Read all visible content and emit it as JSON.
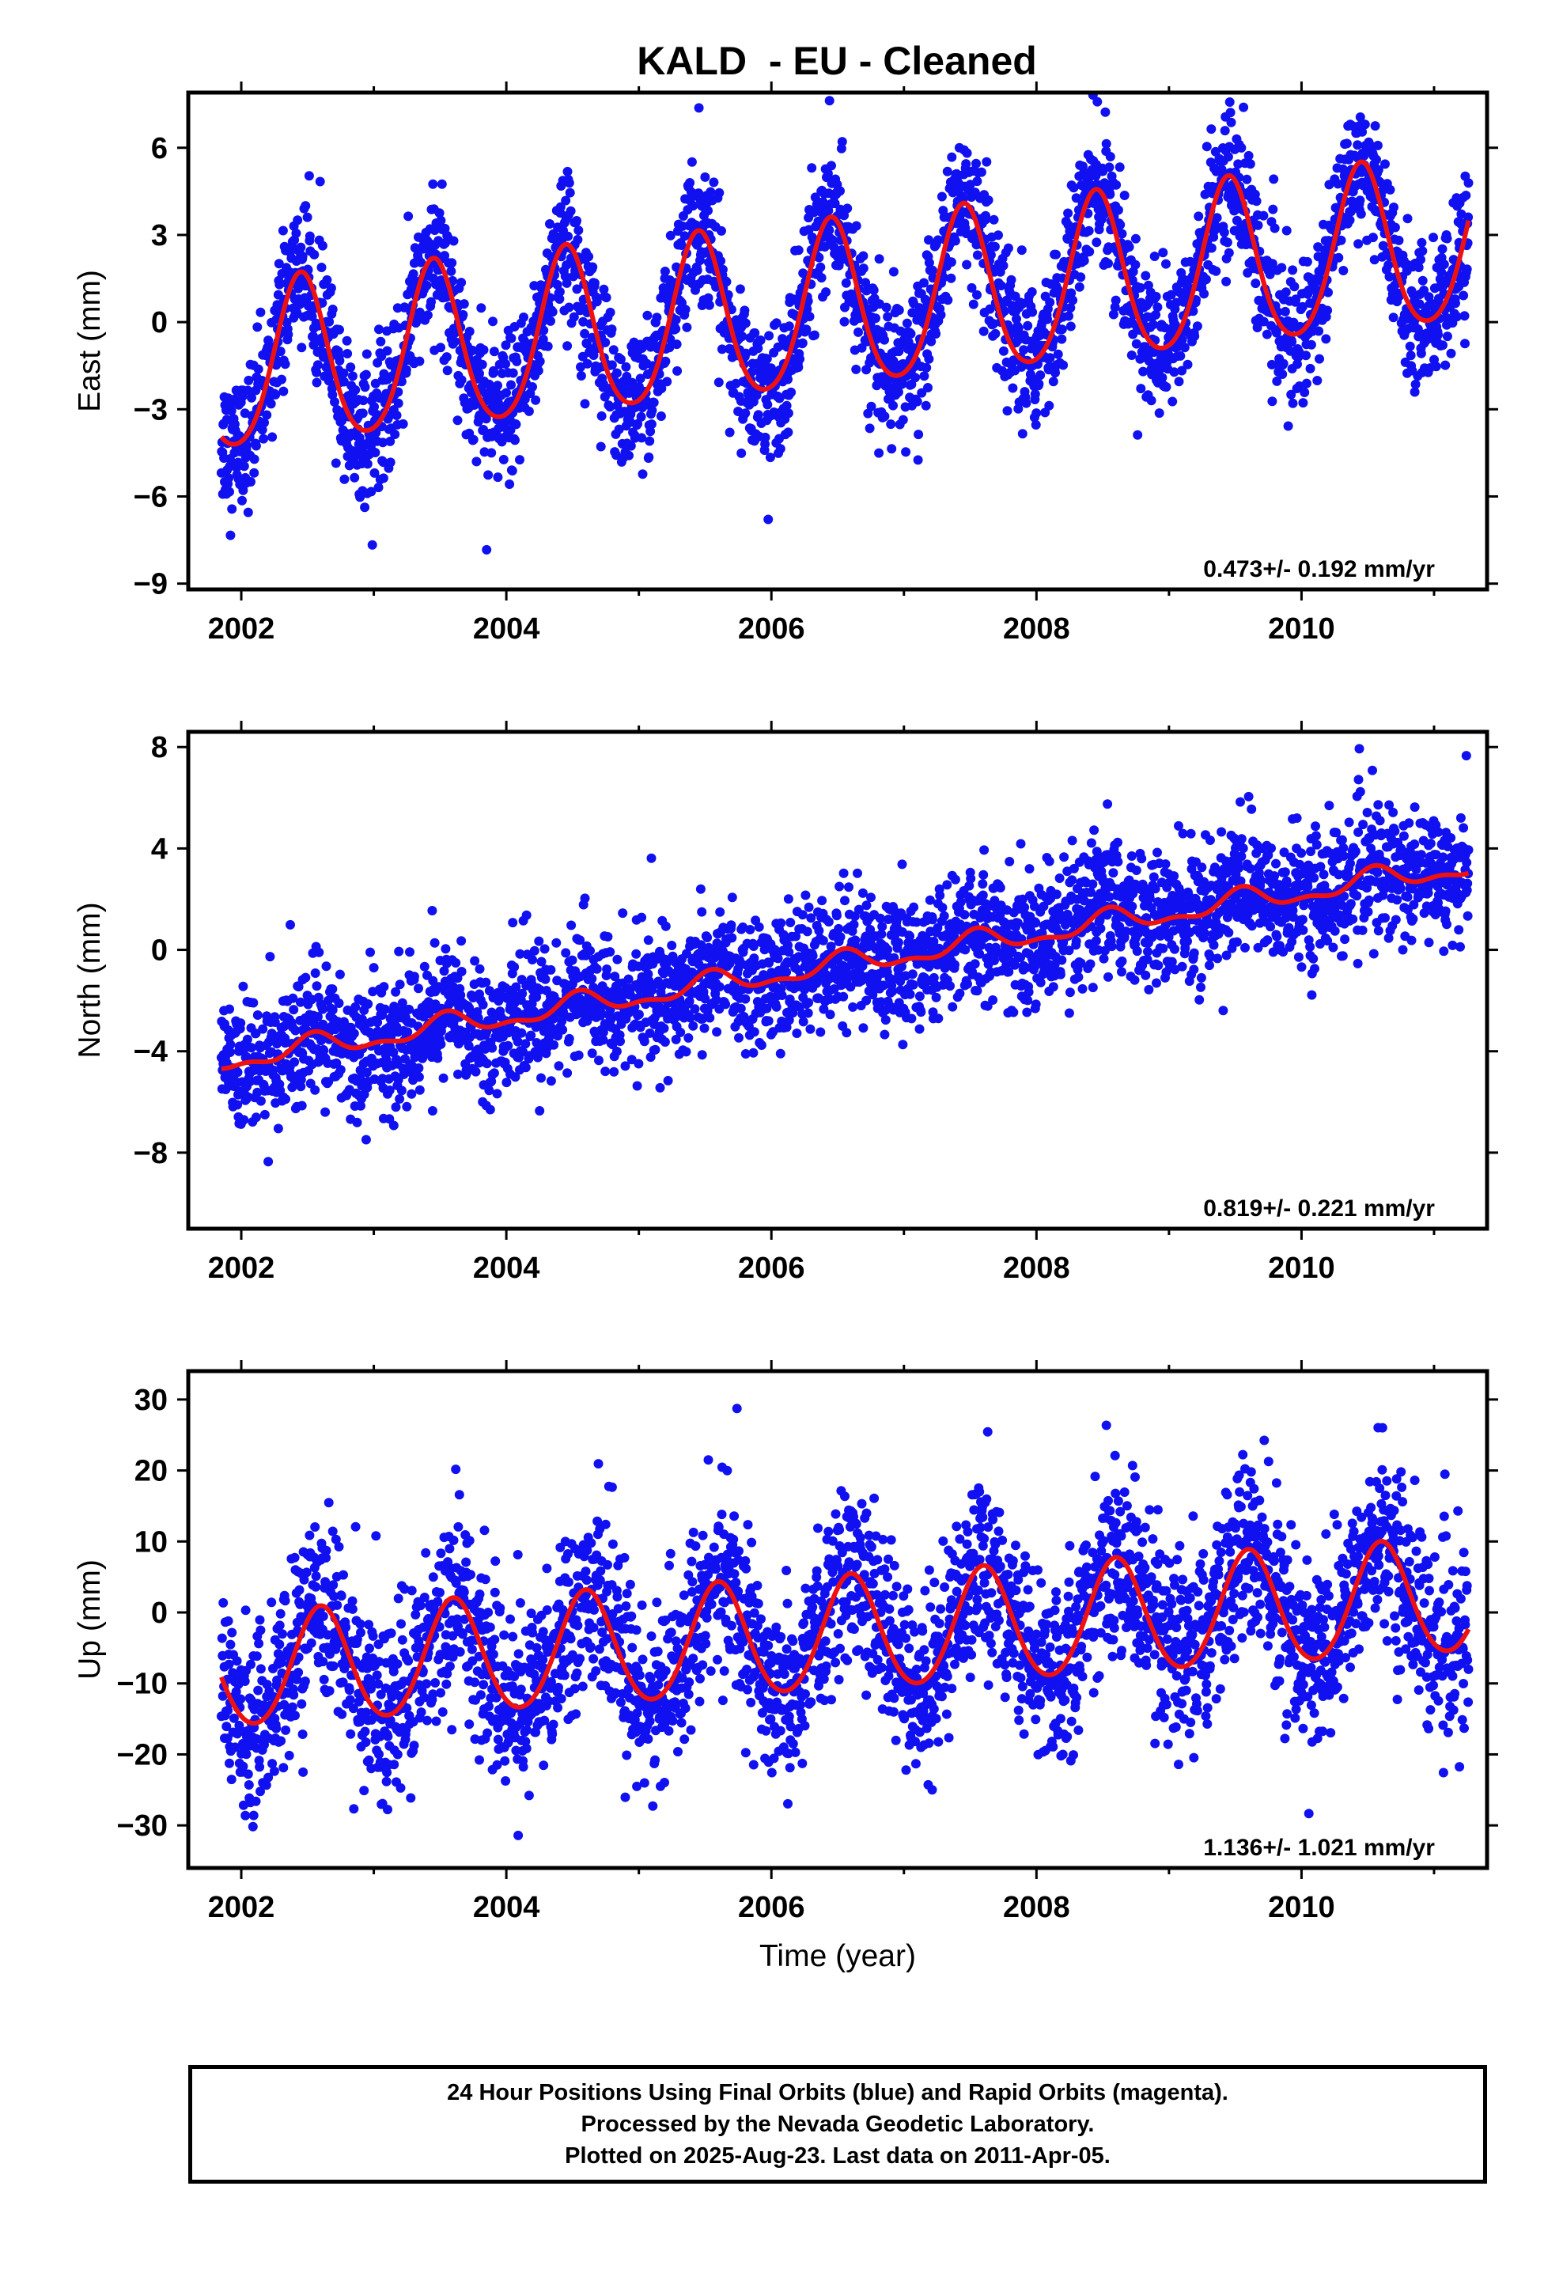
{
  "title": "KALD  - EU - Cleaned",
  "colors": {
    "data": "#1010f0",
    "model": "#ee1111",
    "frame": "#000000"
  },
  "caption": {
    "lines": [
      "24 Hour Positions Using Final Orbits (blue) and Rapid Orbits (magenta).",
      "Processed by the Nevada Geodetic Laboratory.",
      "Plotted on 2025-Aug-23. Last data on 2011-Apr-05."
    ]
  },
  "chart_data": [
    {
      "type": "scatter",
      "ylabel": "East (mm)",
      "xlabel": "",
      "rate": "0.473+/- 0.192 mm/yr",
      "xlim": [
        2001.6,
        2011.4
      ],
      "ylim": [
        -9.2,
        7.9
      ],
      "xticks": [
        2002,
        2004,
        2006,
        2008,
        2010
      ],
      "yticks": [
        -9,
        -6,
        -3,
        0,
        3,
        6
      ],
      "model": {
        "offset": -1.75,
        "trend": 0.473,
        "annual_amplitude": 2.85,
        "annual_peak": 0.45,
        "semiannual_amplitude": 0.35
      },
      "scatter_sd": 1.2,
      "series": [
        {
          "values_from": "2001.85 to 2011.26, daily solutions"
        }
      ]
    },
    {
      "type": "scatter",
      "ylabel": "North (mm)",
      "xlabel": "",
      "rate": "0.819+/- 0.221 mm/yr",
      "xlim": [
        2001.6,
        2011.4
      ],
      "ylim": [
        -11,
        8.6
      ],
      "xticks": [
        2002,
        2004,
        2006,
        2008,
        2010
      ],
      "yticks": [
        -8,
        -4,
        0,
        4,
        8
      ],
      "model": {
        "offset": -4.4,
        "trend": 0.819,
        "annual_amplitude": 0.4,
        "annual_peak": 0.55,
        "semiannual_amplitude": 0.2
      },
      "scatter_sd": 1.3
    },
    {
      "type": "scatter",
      "ylabel": "Up (mm)",
      "xlabel": "Time (year)",
      "rate": "1.136+/- 1.021 mm/yr",
      "xlim": [
        2001.6,
        2011.4
      ],
      "ylim": [
        -36,
        34
      ],
      "xticks": [
        2002,
        2004,
        2006,
        2008,
        2010
      ],
      "yticks": [
        -30,
        -20,
        -10,
        0,
        10,
        20,
        30
      ],
      "model": {
        "offset": -8.5,
        "trend": 1.136,
        "annual_amplitude": 8.0,
        "annual_peak": 0.6,
        "semiannual_amplitude": 0.6
      },
      "scatter_sd": 6.5
    }
  ]
}
